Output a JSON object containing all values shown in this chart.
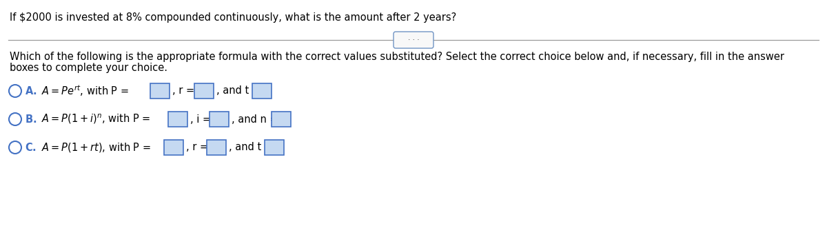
{
  "title_text": "If $2000 is invested at 8% compounded continuously, what is the amount after 2 years?",
  "question_line1": "Which of the following is the appropriate formula with the correct values substituted? Select the correct choice below and, if necessary, fill in the answer",
  "question_line2": "boxes to complete your choice.",
  "separator_dots": "• • •",
  "circle_color": "#4472C4",
  "box_facecolor": "#C5D9F1",
  "box_edgecolor": "#4472C4",
  "line_color": "#999999",
  "bg_color": "#ffffff",
  "title_fontsize": 10.5,
  "question_fontsize": 10.5,
  "option_fontsize": 10.5,
  "letter_color": "#4472C4",
  "text_color": "#000000",
  "btn_edge_color": "#7094C4",
  "btn_face_color": "#f8f8f8"
}
